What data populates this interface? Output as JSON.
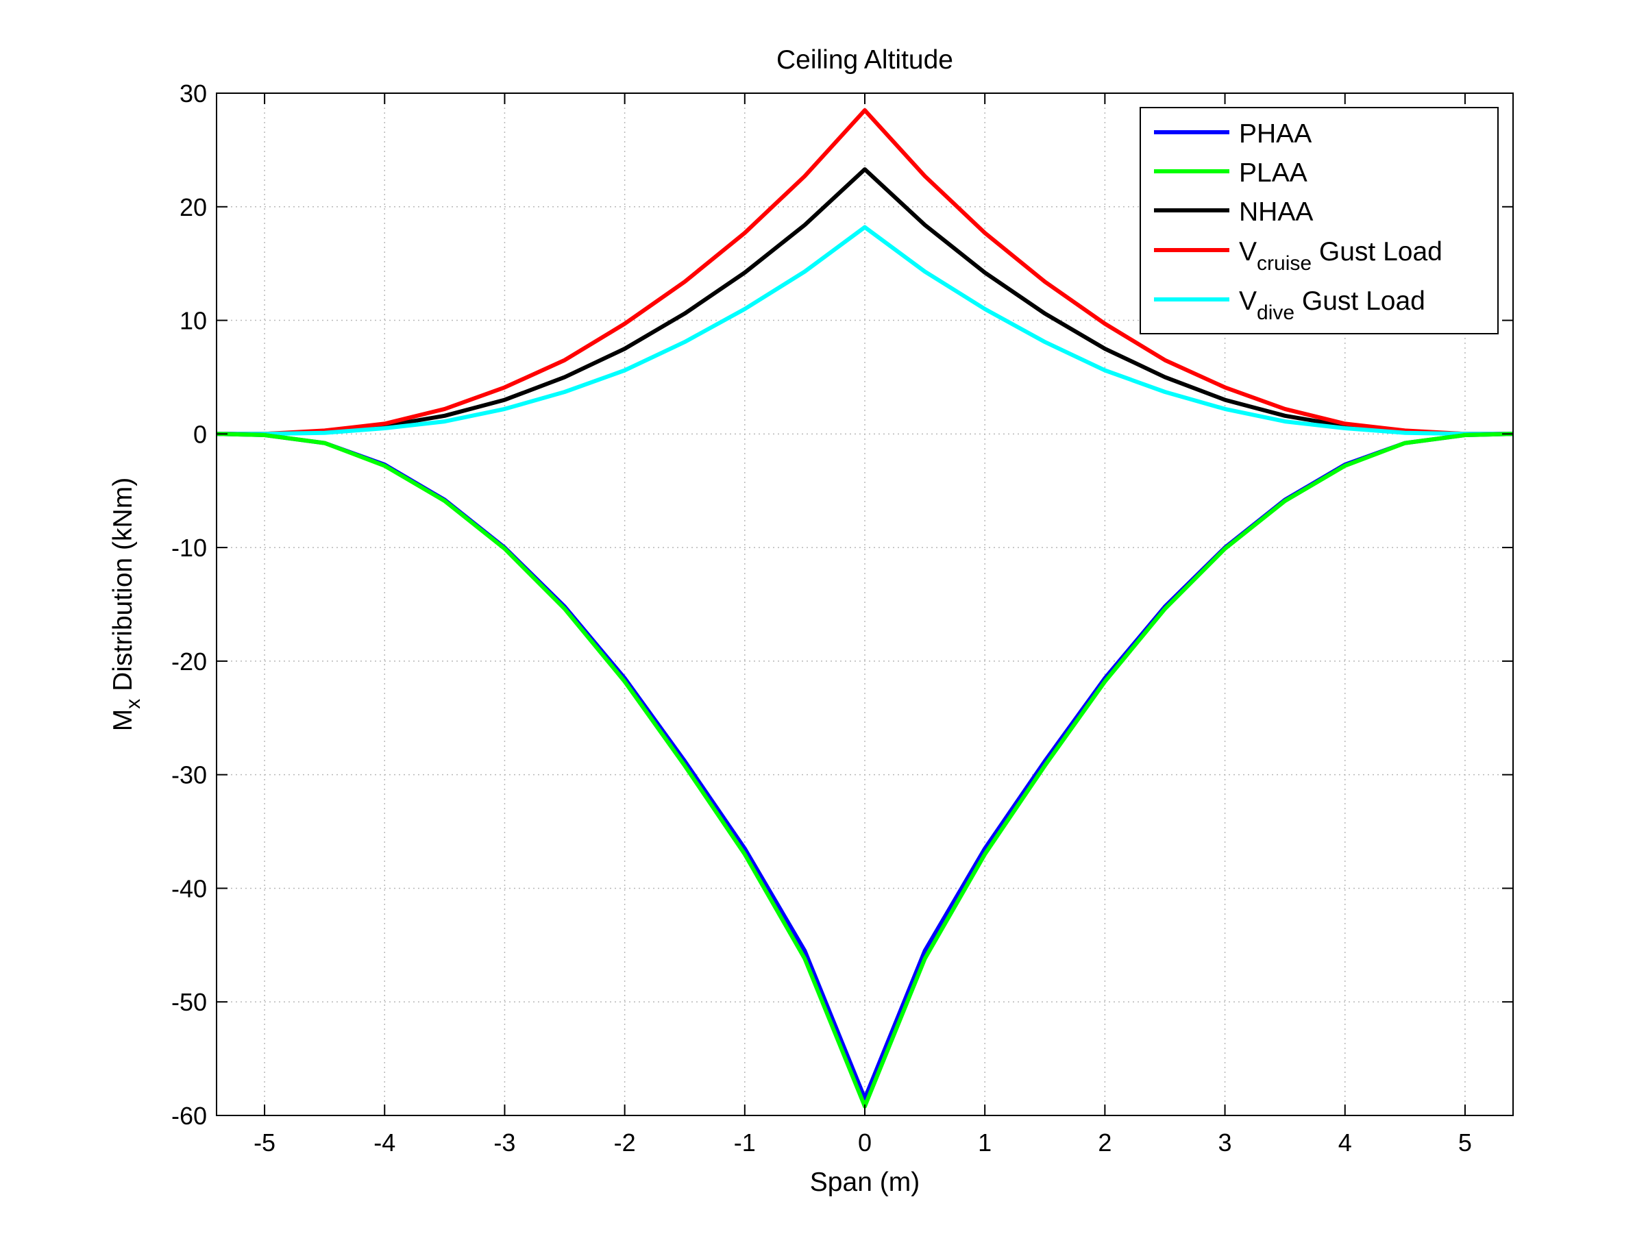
{
  "chart_data": {
    "type": "line",
    "title": "Ceiling Altitude",
    "xlabel": "Span (m)",
    "ylabel": {
      "main": "M",
      "sub": "x",
      "rest": " Distribution (kNm)"
    },
    "xlim": [
      -5.4,
      5.4
    ],
    "ylim": [
      -60,
      30
    ],
    "xticks": [
      -5,
      -4,
      -3,
      -2,
      -1,
      0,
      1,
      2,
      3,
      4,
      5
    ],
    "xtick_labels": [
      "-5",
      "-4",
      "-3",
      "-2",
      "-1",
      "0",
      "1",
      "2",
      "3",
      "4",
      "5"
    ],
    "yticks": [
      30,
      20,
      10,
      0,
      -10,
      -20,
      -30,
      -40,
      -50,
      -60
    ],
    "ytick_labels": [
      "30",
      "20",
      "10",
      "0",
      "-10",
      "-20",
      "-30",
      "-40",
      "-50",
      "-60"
    ],
    "grid": true,
    "legend_position": "top-right",
    "x": [
      0,
      0.5,
      1,
      1.5,
      2,
      2.5,
      3,
      3.5,
      4,
      4.5,
      5,
      5.4
    ],
    "series": [
      {
        "name": "PHAA",
        "legend": {
          "main": "PHAA",
          "sub": "",
          "rest": ""
        },
        "color": "#0000ff",
        "values": [
          -58.5,
          -45.5,
          -36.5,
          -28.8,
          -21.5,
          -15.2,
          -10.0,
          -5.8,
          -2.7,
          -0.8,
          -0.1,
          0
        ]
      },
      {
        "name": "PLAA",
        "legend": {
          "main": "PLAA",
          "sub": "",
          "rest": ""
        },
        "color": "#00ff00",
        "values": [
          -59.2,
          -46.2,
          -37.0,
          -29.2,
          -21.8,
          -15.4,
          -10.1,
          -5.9,
          -2.8,
          -0.8,
          -0.1,
          0
        ]
      },
      {
        "name": "NHAA",
        "legend": {
          "main": "NHAA",
          "sub": "",
          "rest": ""
        },
        "color": "#000000",
        "values": [
          23.3,
          18.4,
          14.2,
          10.6,
          7.5,
          5.0,
          3.0,
          1.6,
          0.7,
          0.2,
          0.0,
          0
        ]
      },
      {
        "name": "Vcruise Gust Load",
        "legend": {
          "main": "V",
          "sub": "cruise",
          "rest": " Gust Load"
        },
        "color": "#ff0000",
        "values": [
          28.5,
          22.7,
          17.7,
          13.4,
          9.7,
          6.5,
          4.1,
          2.2,
          0.9,
          0.3,
          0.0,
          0
        ]
      },
      {
        "name": "Vdive Gust Load",
        "legend": {
          "main": "V",
          "sub": "dive",
          "rest": " Gust Load"
        },
        "color": "#00ffff",
        "values": [
          18.2,
          14.3,
          11.0,
          8.1,
          5.6,
          3.7,
          2.2,
          1.1,
          0.5,
          0.1,
          0.0,
          0
        ]
      }
    ]
  }
}
